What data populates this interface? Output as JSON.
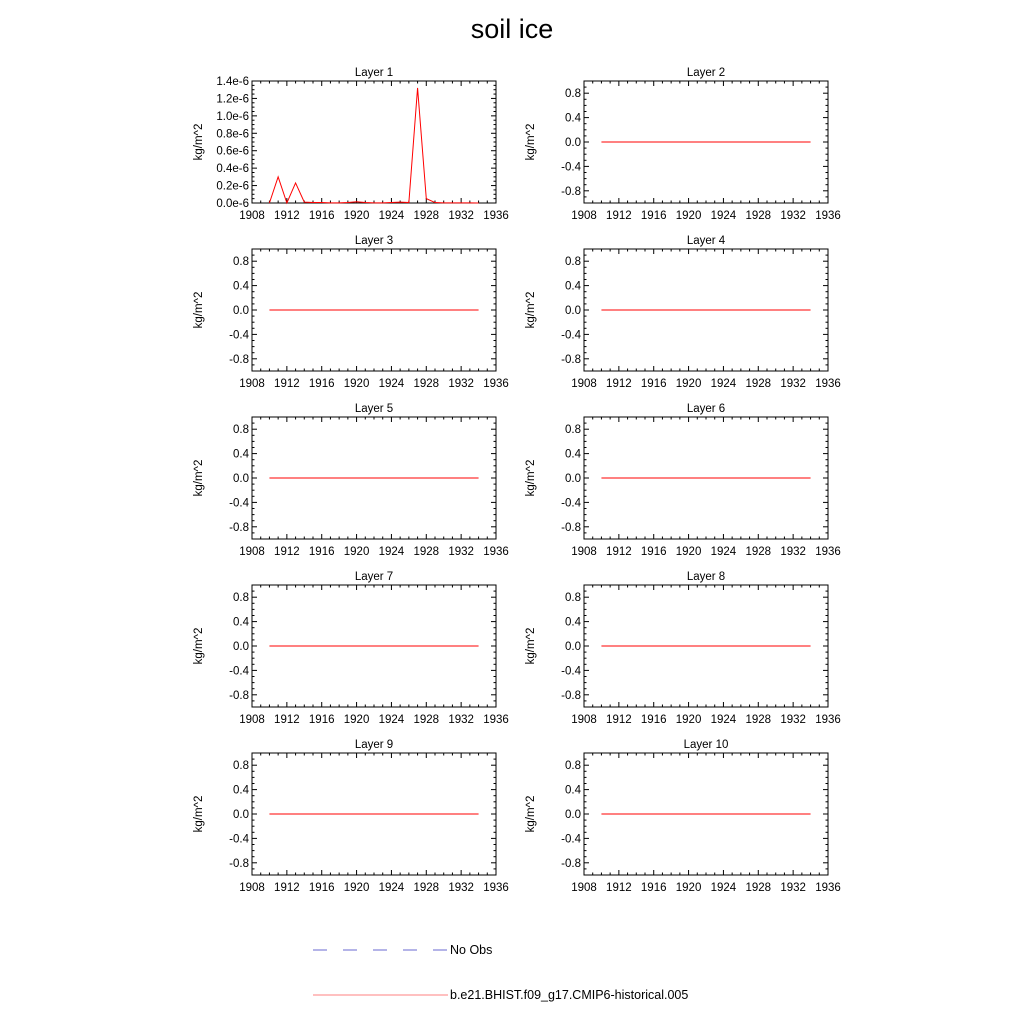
{
  "title": "soil ice",
  "colors": {
    "model": "#ff0000",
    "obs": "#6a6ad2",
    "axis": "#000000"
  },
  "legend": {
    "obs_label": "No Obs",
    "model_label": "b.e21.BHIST.f09_g17.CMIP6-historical.005"
  },
  "chart_data": [
    {
      "type": "line",
      "title": "Layer 1",
      "ylabel": "kg/m^2",
      "xlim": [
        1908,
        1936
      ],
      "xticks": [
        1908,
        1912,
        1916,
        1920,
        1924,
        1928,
        1932,
        1936
      ],
      "ylim": [
        0,
        1.4e-06
      ],
      "yticks": [
        0,
        2e-07,
        4e-07,
        6e-07,
        8e-07,
        1e-06,
        1.2e-06,
        1.4e-06
      ],
      "yticklabels": [
        "0.0e-6",
        "0.2e-6",
        "0.4e-6",
        "0.6e-6",
        "0.8e-6",
        "1.0e-6",
        "1.2e-6",
        "1.4e-6"
      ],
      "series": [
        {
          "x": [
            1910,
            1911,
            1912,
            1913,
            1914,
            1915,
            1916,
            1917,
            1918,
            1919,
            1920,
            1921,
            1922,
            1923,
            1924,
            1925,
            1926,
            1927,
            1928,
            1929,
            1930,
            1931,
            1932,
            1933,
            1934
          ],
          "values": [
            0,
            3e-07,
            0,
            2.3e-07,
            1e-08,
            5e-09,
            5e-09,
            2e-09,
            2e-09,
            5e-09,
            1.5e-08,
            5e-09,
            2e-09,
            2e-09,
            5e-09,
            1e-08,
            5e-09,
            1.32e-06,
            5e-08,
            5e-09,
            2e-09,
            2e-09,
            2e-09,
            2e-09,
            0
          ]
        }
      ]
    },
    {
      "type": "line",
      "title": "Layer 2",
      "ylabel": "kg/m^2",
      "xlim": [
        1908,
        1936
      ],
      "xticks": [
        1908,
        1912,
        1916,
        1920,
        1924,
        1928,
        1932,
        1936
      ],
      "ylim": [
        -1,
        1
      ],
      "yticks": [
        -0.8,
        -0.4,
        0,
        0.4,
        0.8
      ],
      "yticklabels": [
        "-0.8",
        "-0.4",
        "0.0",
        "0.4",
        "0.8"
      ],
      "series": [
        {
          "x": [
            1910,
            1934
          ],
          "values": [
            0,
            0
          ]
        }
      ]
    },
    {
      "type": "line",
      "title": "Layer 3",
      "ylabel": "kg/m^2",
      "xlim": [
        1908,
        1936
      ],
      "xticks": [
        1908,
        1912,
        1916,
        1920,
        1924,
        1928,
        1932,
        1936
      ],
      "ylim": [
        -1,
        1
      ],
      "yticks": [
        -0.8,
        -0.4,
        0,
        0.4,
        0.8
      ],
      "yticklabels": [
        "-0.8",
        "-0.4",
        "0.0",
        "0.4",
        "0.8"
      ],
      "series": [
        {
          "x": [
            1910,
            1934
          ],
          "values": [
            0,
            0
          ]
        }
      ]
    },
    {
      "type": "line",
      "title": "Layer 4",
      "ylabel": "kg/m^2",
      "xlim": [
        1908,
        1936
      ],
      "xticks": [
        1908,
        1912,
        1916,
        1920,
        1924,
        1928,
        1932,
        1936
      ],
      "ylim": [
        -1,
        1
      ],
      "yticks": [
        -0.8,
        -0.4,
        0,
        0.4,
        0.8
      ],
      "yticklabels": [
        "-0.8",
        "-0.4",
        "0.0",
        "0.4",
        "0.8"
      ],
      "series": [
        {
          "x": [
            1910,
            1934
          ],
          "values": [
            0,
            0
          ]
        }
      ]
    },
    {
      "type": "line",
      "title": "Layer 5",
      "ylabel": "kg/m^2",
      "xlim": [
        1908,
        1936
      ],
      "xticks": [
        1908,
        1912,
        1916,
        1920,
        1924,
        1928,
        1932,
        1936
      ],
      "ylim": [
        -1,
        1
      ],
      "yticks": [
        -0.8,
        -0.4,
        0,
        0.4,
        0.8
      ],
      "yticklabels": [
        "-0.8",
        "-0.4",
        "0.0",
        "0.4",
        "0.8"
      ],
      "series": [
        {
          "x": [
            1910,
            1934
          ],
          "values": [
            0,
            0
          ]
        }
      ]
    },
    {
      "type": "line",
      "title": "Layer 6",
      "ylabel": "kg/m^2",
      "xlim": [
        1908,
        1936
      ],
      "xticks": [
        1908,
        1912,
        1916,
        1920,
        1924,
        1928,
        1932,
        1936
      ],
      "ylim": [
        -1,
        1
      ],
      "yticks": [
        -0.8,
        -0.4,
        0,
        0.4,
        0.8
      ],
      "yticklabels": [
        "-0.8",
        "-0.4",
        "0.0",
        "0.4",
        "0.8"
      ],
      "series": [
        {
          "x": [
            1910,
            1934
          ],
          "values": [
            0,
            0
          ]
        }
      ]
    },
    {
      "type": "line",
      "title": "Layer 7",
      "ylabel": "kg/m^2",
      "xlim": [
        1908,
        1936
      ],
      "xticks": [
        1908,
        1912,
        1916,
        1920,
        1924,
        1928,
        1932,
        1936
      ],
      "ylim": [
        -1,
        1
      ],
      "yticks": [
        -0.8,
        -0.4,
        0,
        0.4,
        0.8
      ],
      "yticklabels": [
        "-0.8",
        "-0.4",
        "0.0",
        "0.4",
        "0.8"
      ],
      "series": [
        {
          "x": [
            1910,
            1934
          ],
          "values": [
            0,
            0
          ]
        }
      ]
    },
    {
      "type": "line",
      "title": "Layer 8",
      "ylabel": "kg/m^2",
      "xlim": [
        1908,
        1936
      ],
      "xticks": [
        1908,
        1912,
        1916,
        1920,
        1924,
        1928,
        1932,
        1936
      ],
      "ylim": [
        -1,
        1
      ],
      "yticks": [
        -0.8,
        -0.4,
        0,
        0.4,
        0.8
      ],
      "yticklabels": [
        "-0.8",
        "-0.4",
        "0.0",
        "0.4",
        "0.8"
      ],
      "series": [
        {
          "x": [
            1910,
            1934
          ],
          "values": [
            0,
            0
          ]
        }
      ]
    },
    {
      "type": "line",
      "title": "Layer 9",
      "ylabel": "kg/m^2",
      "xlim": [
        1908,
        1936
      ],
      "xticks": [
        1908,
        1912,
        1916,
        1920,
        1924,
        1928,
        1932,
        1936
      ],
      "ylim": [
        -1,
        1
      ],
      "yticks": [
        -0.8,
        -0.4,
        0,
        0.4,
        0.8
      ],
      "yticklabels": [
        "-0.8",
        "-0.4",
        "0.0",
        "0.4",
        "0.8"
      ],
      "series": [
        {
          "x": [
            1910,
            1934
          ],
          "values": [
            0,
            0
          ]
        }
      ]
    },
    {
      "type": "line",
      "title": "Layer 10",
      "ylabel": "kg/m^2",
      "xlim": [
        1908,
        1936
      ],
      "xticks": [
        1908,
        1912,
        1916,
        1920,
        1924,
        1928,
        1932,
        1936
      ],
      "ylim": [
        -1,
        1
      ],
      "yticks": [
        -0.8,
        -0.4,
        0,
        0.4,
        0.8
      ],
      "yticklabels": [
        "-0.8",
        "-0.4",
        "0.0",
        "0.4",
        "0.8"
      ],
      "series": [
        {
          "x": [
            1910,
            1934
          ],
          "values": [
            0,
            0
          ]
        }
      ]
    }
  ]
}
